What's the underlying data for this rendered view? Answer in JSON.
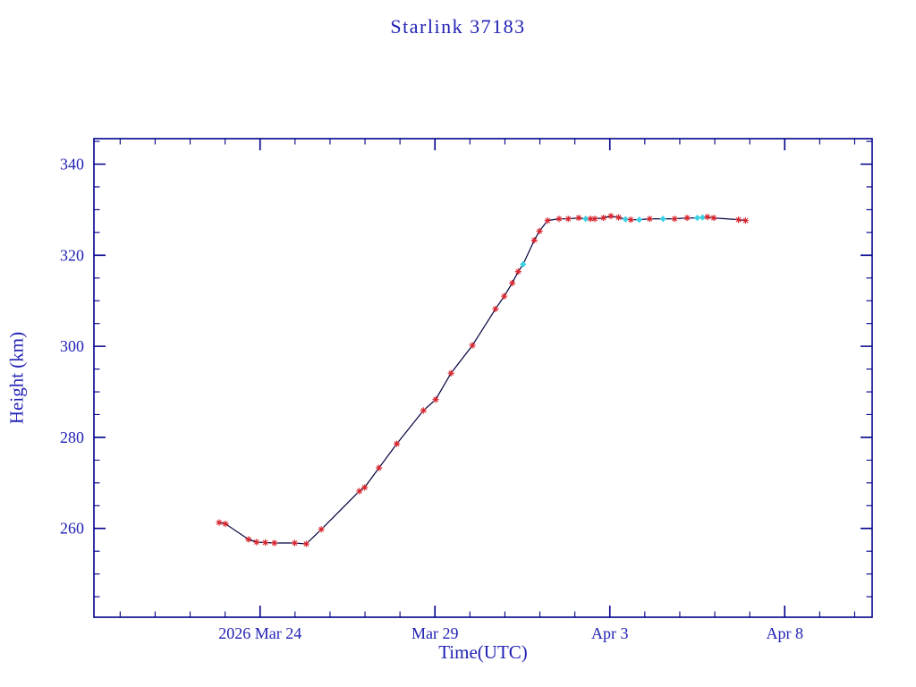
{
  "chart_data": {
    "type": "line",
    "title": "Starlink 37183",
    "xlabel": "Time(UTC)",
    "ylabel": "Height (km)",
    "x_axis_note": "x values are days, 0 = 2026 Mar 19 00:00 UTC",
    "xlim": [
      0.25,
      22.5
    ],
    "ylim": [
      240.5,
      345.6
    ],
    "x_ticks": [
      {
        "value": 5,
        "label": "2026 Mar 24"
      },
      {
        "value": 10,
        "label": "Mar 29"
      },
      {
        "value": 15,
        "label": "Apr  3"
      },
      {
        "value": 20,
        "label": "Apr  8"
      }
    ],
    "x_minor_step": 1,
    "y_ticks": [
      {
        "value": 260,
        "label": "260"
      },
      {
        "value": 280,
        "label": "280"
      },
      {
        "value": 300,
        "label": "300"
      },
      {
        "value": 320,
        "label": "320"
      },
      {
        "value": 340,
        "label": "340"
      }
    ],
    "y_minor_step": 5,
    "grid": false,
    "legend": "none",
    "colors": {
      "axis": "#00008b",
      "text": "#2121b5",
      "line": "#000040",
      "marker_red": "#d8242c",
      "marker_cyan": "#3cd2e6"
    },
    "points": [
      [
        3.83,
        261.3,
        "r"
      ],
      [
        4.01,
        261.0,
        "r"
      ],
      [
        4.67,
        257.6,
        "r"
      ],
      [
        4.9,
        257.0,
        "r"
      ],
      [
        5.15,
        256.9,
        "r"
      ],
      [
        5.41,
        256.8,
        "r"
      ],
      [
        5.99,
        256.8,
        "r"
      ],
      [
        6.32,
        256.6,
        "r"
      ],
      [
        6.75,
        259.8,
        "r"
      ],
      [
        7.84,
        268.2,
        "r"
      ],
      [
        7.99,
        269.0,
        "r"
      ],
      [
        8.4,
        273.3,
        "r"
      ],
      [
        8.91,
        278.6,
        "r"
      ],
      [
        9.67,
        285.9,
        "r"
      ],
      [
        10.02,
        288.3,
        "r"
      ],
      [
        10.46,
        294.1,
        "r"
      ],
      [
        11.07,
        300.2,
        "r"
      ],
      [
        11.73,
        308.2,
        "r"
      ],
      [
        11.98,
        311.0,
        "r"
      ],
      [
        12.21,
        313.9,
        "r"
      ],
      [
        12.38,
        316.4,
        "r"
      ],
      [
        12.52,
        318.0,
        "c"
      ],
      [
        12.84,
        323.3,
        "r"
      ],
      [
        12.99,
        325.3,
        "r"
      ],
      [
        13.22,
        327.6,
        "r"
      ],
      [
        13.55,
        328.0,
        "r"
      ],
      [
        13.81,
        328.0,
        "r"
      ],
      [
        14.11,
        328.2,
        "r"
      ],
      [
        14.31,
        328.0,
        "c"
      ],
      [
        14.45,
        328.0,
        "r"
      ],
      [
        14.57,
        328.0,
        "r"
      ],
      [
        14.82,
        328.2,
        "r"
      ],
      [
        15.03,
        328.6,
        "r"
      ],
      [
        15.25,
        328.3,
        "r"
      ],
      [
        15.45,
        327.9,
        "c"
      ],
      [
        15.6,
        327.8,
        "r"
      ],
      [
        15.84,
        327.8,
        "c"
      ],
      [
        16.14,
        328.0,
        "r"
      ],
      [
        16.52,
        328.0,
        "c"
      ],
      [
        16.85,
        328.0,
        "r"
      ],
      [
        17.21,
        328.2,
        "r"
      ],
      [
        17.5,
        328.2,
        "c"
      ],
      [
        17.65,
        328.3,
        "c"
      ],
      [
        17.79,
        328.4,
        "r"
      ],
      [
        17.97,
        328.2,
        "r"
      ],
      [
        18.68,
        327.8,
        "r"
      ],
      [
        18.88,
        327.6,
        "r"
      ]
    ]
  }
}
